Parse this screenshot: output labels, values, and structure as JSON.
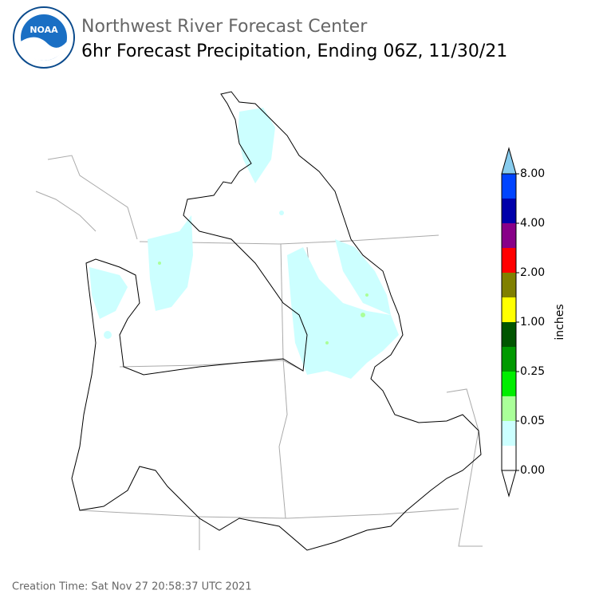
{
  "header": {
    "logo_text": "NOAA",
    "title": "Northwest River Forecast Center",
    "subtitle": "6hr Forecast Precipitation, Ending 06Z, 11/30/21"
  },
  "legend": {
    "title": "inches",
    "colors": [
      "#ffffff",
      "#ccffff",
      "#aaff99",
      "#00ee00",
      "#009900",
      "#005500",
      "#ffff00",
      "#808000",
      "#ff0000",
      "#880088",
      "#0000aa",
      "#0044ff"
    ],
    "extend_color": "#88ccee",
    "labels": [
      "0.00",
      "0.05",
      "0.25",
      "1.00",
      "2.00",
      "4.00",
      "8.00"
    ]
  },
  "footer": {
    "creation_time": "Creation Time: Sat Nov 27 20:58:37 UTC 2021"
  }
}
